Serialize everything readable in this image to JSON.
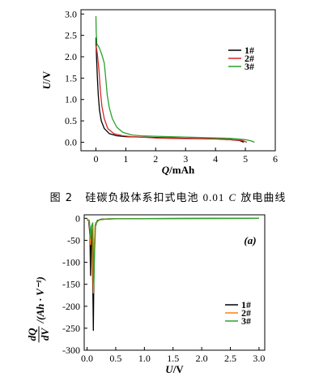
{
  "caption": {
    "figure_number": "图 2",
    "text_before": "硅碳负极体系扣式电池",
    "rate_value": "0.01",
    "rate_symbol": "C",
    "text_after": "放电曲线"
  },
  "chart_data": [
    {
      "type": "line",
      "xlabel_var": "Q",
      "xlabel_unit": "/mAh",
      "ylabel_var": "U",
      "ylabel_unit": "/V",
      "xlim": [
        -0.5,
        6
      ],
      "ylim": [
        -0.2,
        3.1
      ],
      "xticks": [
        0,
        1,
        2,
        3,
        4,
        5,
        6
      ],
      "yticks": [
        0.0,
        0.5,
        1.0,
        1.5,
        2.0,
        2.5,
        3.0
      ],
      "legend_position": "top-right",
      "series": [
        {
          "name": "1#",
          "color": "#000000",
          "points": [
            [
              0,
              2.45
            ],
            [
              0.02,
              2.0
            ],
            [
              0.05,
              1.5
            ],
            [
              0.08,
              1.1
            ],
            [
              0.12,
              0.75
            ],
            [
              0.18,
              0.5
            ],
            [
              0.28,
              0.32
            ],
            [
              0.45,
              0.2
            ],
            [
              0.7,
              0.15
            ],
            [
              1.0,
              0.13
            ],
            [
              1.5,
              0.12
            ],
            [
              2,
              0.11
            ],
            [
              2.5,
              0.1
            ],
            [
              3,
              0.09
            ],
            [
              3.5,
              0.085
            ],
            [
              4,
              0.08
            ],
            [
              4.5,
              0.06
            ],
            [
              4.8,
              0.04
            ],
            [
              4.95,
              0.0
            ]
          ]
        },
        {
          "name": "2#",
          "color": "#d62728",
          "points": [
            [
              0,
              2.25
            ],
            [
              0.02,
              2.2
            ],
            [
              0.05,
              2.05
            ],
            [
              0.1,
              1.7
            ],
            [
              0.15,
              1.2
            ],
            [
              0.2,
              0.85
            ],
            [
              0.28,
              0.55
            ],
            [
              0.4,
              0.32
            ],
            [
              0.6,
              0.2
            ],
            [
              0.9,
              0.15
            ],
            [
              1.2,
              0.13
            ],
            [
              1.5,
              0.12
            ],
            [
              2,
              0.1
            ],
            [
              2.5,
              0.09
            ],
            [
              3,
              0.085
            ],
            [
              3.5,
              0.08
            ],
            [
              4,
              0.075
            ],
            [
              4.5,
              0.06
            ],
            [
              4.9,
              0.04
            ],
            [
              5.05,
              0.0
            ]
          ]
        },
        {
          "name": "3#",
          "color": "#2ca02c",
          "points": [
            [
              0,
              2.95
            ],
            [
              0.01,
              2.6
            ],
            [
              0.03,
              2.3
            ],
            [
              0.08,
              2.25
            ],
            [
              0.12,
              2.2
            ],
            [
              0.2,
              2.05
            ],
            [
              0.28,
              1.85
            ],
            [
              0.33,
              1.5
            ],
            [
              0.38,
              1.1
            ],
            [
              0.45,
              0.8
            ],
            [
              0.55,
              0.55
            ],
            [
              0.7,
              0.35
            ],
            [
              0.9,
              0.23
            ],
            [
              1.2,
              0.17
            ],
            [
              1.5,
              0.15
            ],
            [
              2,
              0.14
            ],
            [
              2.5,
              0.13
            ],
            [
              3,
              0.12
            ],
            [
              3.5,
              0.11
            ],
            [
              4,
              0.1
            ],
            [
              4.5,
              0.09
            ],
            [
              5,
              0.06
            ],
            [
              5.2,
              0.03
            ],
            [
              5.3,
              0.0
            ]
          ]
        }
      ]
    },
    {
      "type": "line",
      "panel_label": "(a)",
      "xlabel_var": "U",
      "xlabel_unit": "/V",
      "ylabel_text": "/(Ah · V⁻¹)",
      "ylabel_frac_num": "dQ",
      "ylabel_frac_den": "dV",
      "xlim": [
        -0.05,
        3.1
      ],
      "ylim": [
        -300,
        8
      ],
      "xticks": [
        0.0,
        0.5,
        1.0,
        1.5,
        2.0,
        2.5,
        3.0
      ],
      "yticks": [
        0,
        -50,
        -100,
        -150,
        -200,
        -250,
        -300
      ],
      "legend_position": "bottom-right",
      "series": [
        {
          "name": "1#",
          "color": "#000000",
          "points": [
            [
              0.0,
              -3
            ],
            [
              0.03,
              -6
            ],
            [
              0.05,
              -40
            ],
            [
              0.06,
              -130
            ],
            [
              0.07,
              -30
            ],
            [
              0.08,
              -20
            ],
            [
              0.1,
              -150
            ],
            [
              0.11,
              -255
            ],
            [
              0.12,
              -120
            ],
            [
              0.14,
              -20
            ],
            [
              0.18,
              -5
            ],
            [
              0.25,
              -2
            ],
            [
              0.5,
              -1
            ],
            [
              1.0,
              -0.5
            ],
            [
              3.0,
              0
            ]
          ]
        },
        {
          "name": "2#",
          "color": "#ff7f0e",
          "points": [
            [
              0.0,
              -3
            ],
            [
              0.04,
              -8
            ],
            [
              0.06,
              -60
            ],
            [
              0.07,
              -25
            ],
            [
              0.09,
              -15
            ],
            [
              0.11,
              -170
            ],
            [
              0.12,
              -90
            ],
            [
              0.14,
              -15
            ],
            [
              0.2,
              -4
            ],
            [
              0.35,
              -1
            ],
            [
              1.0,
              -0.5
            ],
            [
              3.0,
              0
            ]
          ]
        },
        {
          "name": "3#",
          "color": "#2ca02c",
          "points": [
            [
              0.0,
              -2
            ],
            [
              0.04,
              -5
            ],
            [
              0.06,
              -45
            ],
            [
              0.07,
              -20
            ],
            [
              0.1,
              -10
            ],
            [
              0.12,
              -150
            ],
            [
              0.13,
              -80
            ],
            [
              0.15,
              -10
            ],
            [
              0.22,
              -3
            ],
            [
              0.4,
              -1
            ],
            [
              1.2,
              -0.5
            ],
            [
              3.0,
              0
            ]
          ]
        }
      ]
    }
  ]
}
